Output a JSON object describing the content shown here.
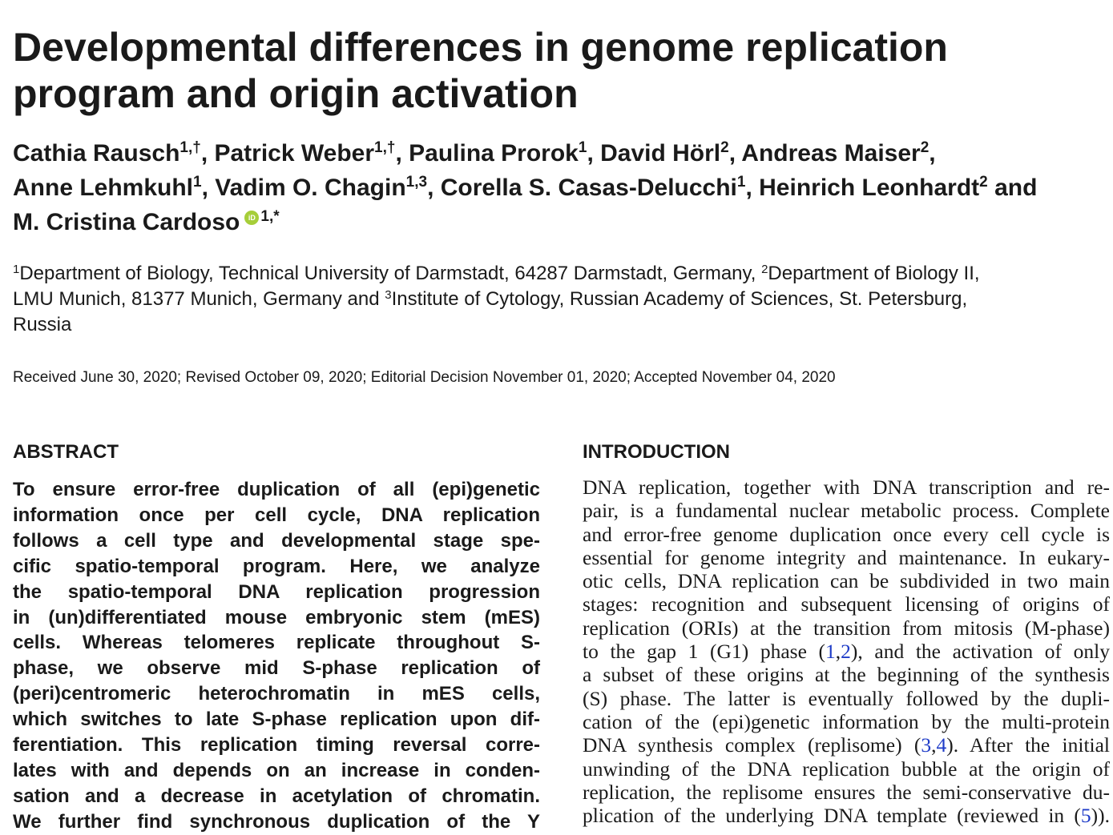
{
  "title": {
    "line1": "Developmental differences in genome replication",
    "line2": "program and origin activation"
  },
  "authors": [
    {
      "name": "Cathia Rausch",
      "sup": "1,†"
    },
    {
      "name": "Patrick Weber",
      "sup": "1,†"
    },
    {
      "name": "Paulina Prorok",
      "sup": "1"
    },
    {
      "name": "David Hörl",
      "sup": "2"
    },
    {
      "name": "Andreas Maiser",
      "sup": "2"
    },
    {
      "name": "Anne Lehmkuhl",
      "sup": "1"
    },
    {
      "name": "Vadim O. Chagin",
      "sup": "1,3"
    },
    {
      "name": "Corella S. Casas-Delucchi",
      "sup": "1"
    },
    {
      "name": "Heinrich Leonhardt",
      "sup": "2"
    },
    {
      "name": "M. Cristina Cardoso",
      "sup": "1,*"
    }
  ],
  "author_connector": "and",
  "orcid_icon": "orcid-icon",
  "orcid_color": "#a6ce39",
  "affiliations": {
    "a1_sup": "1",
    "a1": "Department of Biology, Technical University of Darmstadt, 64287 Darmstadt, Germany, ",
    "a2_sup": "2",
    "a2_part1": "Department of Biology II,",
    "a2_part2": "LMU Munich, 81377 Munich, Germany and ",
    "a3_sup": "3",
    "a3_part1": "Institute of Cytology, Russian Academy of Sciences, St. Petersburg,",
    "a3_part2": "Russia"
  },
  "dates": "Received June 30, 2020; Revised October 09, 2020; Editorial Decision November 01, 2020; Accepted November 04, 2020",
  "abstract": {
    "heading": "ABSTRACT",
    "lines": [
      "To ensure error-free duplication of all (epi)genetic",
      "information once per cell cycle, DNA replication",
      "follows a cell type and developmental stage spe-",
      "cific spatio-temporal program. Here, we analyze",
      "the spatio-temporal DNA replication progression",
      "in (un)differentiated mouse embryonic stem (mES)",
      "cells. Whereas telomeres replicate throughout S-",
      "phase, we observe mid S-phase replication of",
      "(peri)centromeric heterochromatin in mES cells,",
      "which switches to late S-phase replication upon dif-",
      "ferentiation. This replication timing reversal corre-",
      "lates with and depends on an increase in conden-",
      "sation and a decrease in acetylation of chromatin.",
      "We further find synchronous duplication of the Y"
    ]
  },
  "introduction": {
    "heading": "INTRODUCTION",
    "lines": [
      "DNA replication, together with DNA transcription and re-",
      "pair, is a fundamental nuclear metabolic process. Complete",
      "and error-free genome duplication once every cell cycle is",
      "essential for genome integrity and maintenance. In eukary-",
      "otic cells, DNA replication can be subdivided in two main",
      "stages: recognition and subsequent licensing of origins of",
      "replication (ORIs) at the transition from mitosis (M-phase)"
    ],
    "line8_a": "to the gap 1 (G1) phase (",
    "line8_ref1": "1",
    "line8_ref2": "2",
    "line8_b": "), and the activation of only",
    "more_lines": [
      "a subset of these origins at the beginning of the synthesis",
      "(S) phase. The latter is eventually followed by the dupli-",
      "cation of the (epi)genetic information by the multi-protein"
    ],
    "line12_a": "DNA synthesis complex (replisome) (",
    "line12_ref1": "3",
    "line12_ref2": "4",
    "line12_b": "). After the initial",
    "line13": "unwinding of the DNA replication bubble at the origin of",
    "line14": "replication, the replisome ensures the semi-conservative du-",
    "line15_a": "plication of the underlying DNA template (reviewed in (",
    "line15_ref": "5",
    "line15_b": "))."
  },
  "ref_color": "#1f3cc8"
}
